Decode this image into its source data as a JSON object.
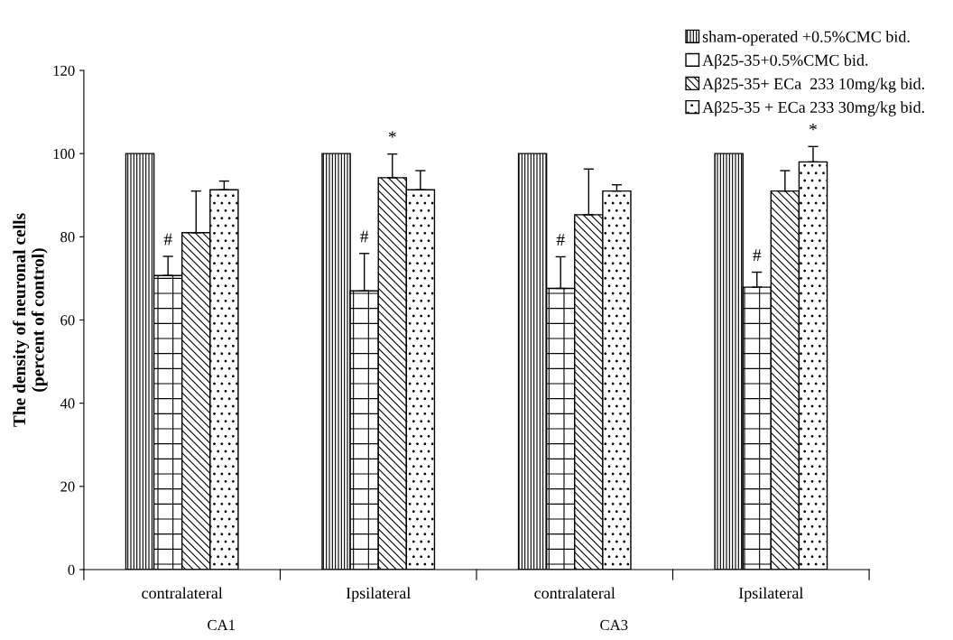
{
  "chart_data": {
    "type": "bar",
    "categories": [
      "contralateral",
      "Ipsilateral",
      "contralateral",
      "Ipsilateral"
    ],
    "ylabel": "The density of neuronal cells\n(percent of control)",
    "ylim": [
      0,
      120
    ],
    "yticks": [
      0,
      20,
      40,
      60,
      80,
      100,
      120
    ],
    "series": [
      {
        "name": "sham-operated +0.5%CMC bid.",
        "color": "#000000",
        "values": [
          100,
          100,
          100,
          100
        ]
      },
      {
        "name": "Aβ25-35+0.5%CMC bid.",
        "color": "#000000",
        "values": [
          70.7,
          67.0,
          67.6,
          67.9
        ],
        "errors": [
          4.6,
          9,
          7.6,
          3.6
        ],
        "value_labels": [
          "#",
          "#",
          "#",
          "#"
        ]
      },
      {
        "name": "Aβ25-35+ ECa  233 10mg/kg bid.",
        "color": "#000000",
        "values": [
          81.0,
          94.2,
          85.3,
          91.0
        ],
        "errors": [
          10,
          5.7,
          11,
          4.9
        ],
        "value_labels": [
          null,
          "*",
          null,
          null
        ]
      },
      {
        "name": "Aβ25-35 + ECa 233 30mg/kg bid.",
        "color": "#000000",
        "values": [
          91.3,
          91.3,
          91.0,
          98.0
        ],
        "errors": [
          2.1,
          4.6,
          1.5,
          3.7
        ],
        "value_labels": [
          null,
          null,
          null,
          "*"
        ]
      }
    ],
    "annotations": [
      "CA1",
      "CA3"
    ],
    "legend": "top right",
    "grid": false
  }
}
